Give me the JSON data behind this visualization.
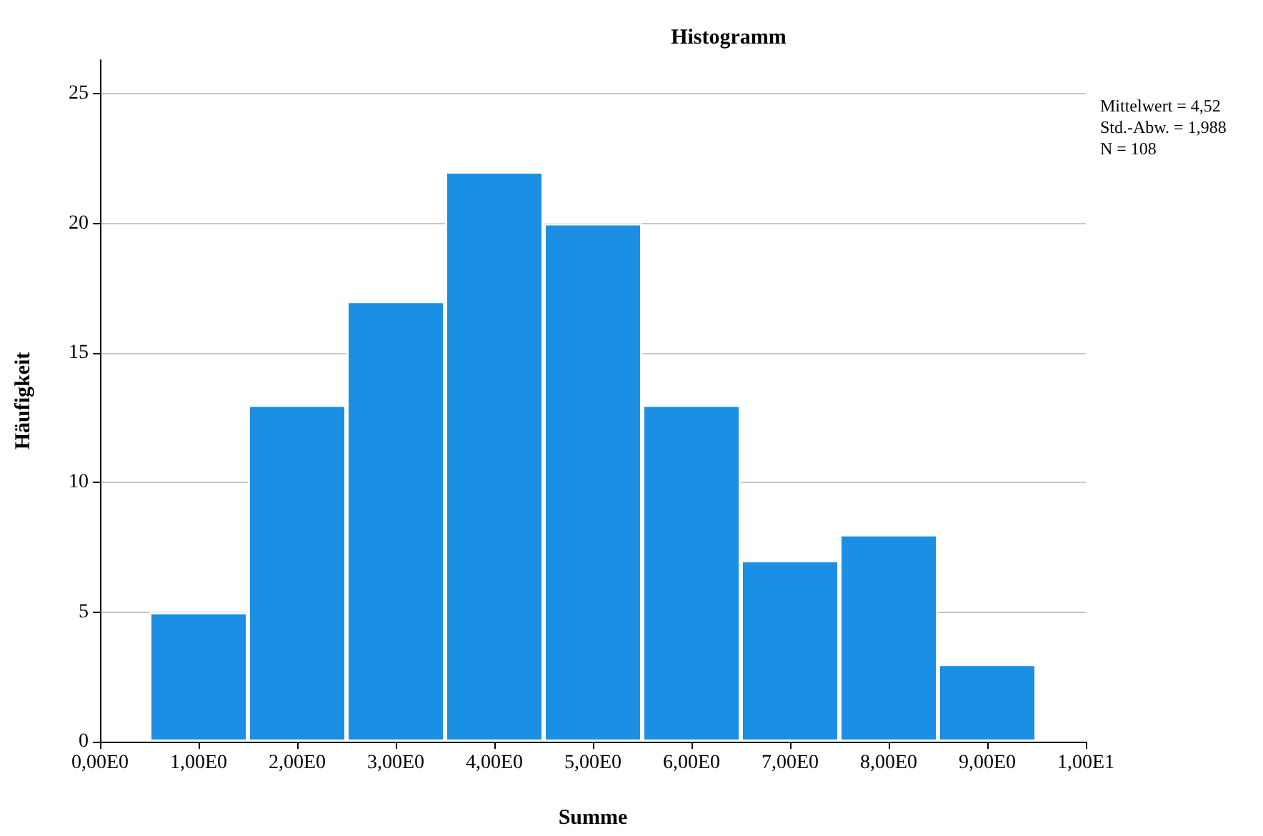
{
  "chart_data": {
    "type": "bar",
    "title": "Histogramm",
    "xlabel": "Summe",
    "ylabel": "Häufigkeit",
    "categories": [
      "0,00E0",
      "1,00E0",
      "2,00E0",
      "3,00E0",
      "4,00E0",
      "5,00E0",
      "6,00E0",
      "7,00E0",
      "8,00E0",
      "9,00E0",
      "1,00E1"
    ],
    "values": [
      null,
      5,
      13,
      17,
      22,
      20,
      13,
      7,
      8,
      3,
      null
    ],
    "color": "#1a8fe3",
    "ylim": [
      0,
      26.3
    ],
    "yticks": [
      0,
      5,
      10,
      15,
      20,
      25
    ],
    "grid": "y",
    "annotations": [
      "Mittelwert = 4,52",
      "Std.-Abw. = 1,988",
      "N = 108"
    ]
  }
}
